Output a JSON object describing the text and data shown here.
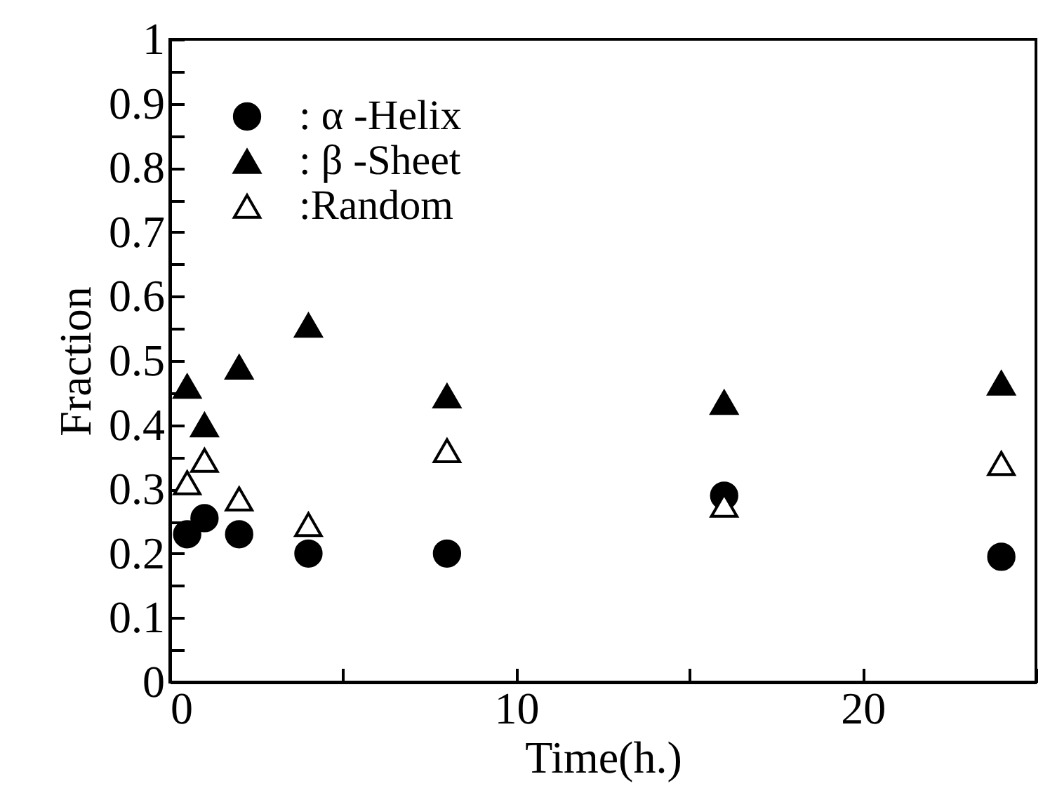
{
  "chart_data": {
    "type": "scatter",
    "xlabel": "Time(h.)",
    "ylabel": "Fraction",
    "x": [
      0.5,
      1,
      2,
      4,
      8,
      16,
      24
    ],
    "series": [
      {
        "name": ": α -Helix",
        "color": "#000000",
        "marker": "circle",
        "values": [
          0.23,
          0.255,
          0.23,
          0.2,
          0.2,
          0.29,
          0.195
        ]
      },
      {
        "name": ": β -Sheet",
        "color": "#000000",
        "marker": "triangle",
        "values": [
          0.46,
          0.4,
          0.49,
          0.555,
          0.445,
          0.435,
          0.465
        ]
      },
      {
        "name": ":Random",
        "color": "#000000",
        "marker": "triangle",
        "values": [
          0.31,
          0.345,
          0.285,
          0.245,
          0.36,
          0.275,
          0.34
        ]
      }
    ],
    "xlim": [
      0,
      25
    ],
    "ylim": [
      0,
      1
    ],
    "xticks": [
      0,
      {
        "value": 5,
        "label": null
      },
      10,
      {
        "value": 15,
        "label": null
      },
      20,
      {
        "value": 25,
        "label": null
      }
    ],
    "yticks": [
      0,
      {
        "value": 0.05,
        "label": null
      },
      0.1,
      {
        "value": 0.15,
        "label": null
      },
      0.2,
      {
        "value": 0.25,
        "label": null
      },
      0.3,
      {
        "value": 0.35,
        "label": null
      },
      0.4,
      {
        "value": 0.45,
        "label": null
      },
      0.5,
      {
        "value": 0.55,
        "label": null
      },
      0.6,
      {
        "value": 0.65,
        "label": null
      },
      0.7,
      {
        "value": 0.75,
        "label": null
      },
      0.8,
      {
        "value": 0.85,
        "label": null
      },
      0.9,
      {
        "value": 0.95,
        "label": null
      },
      1
    ],
    "grid": false,
    "legend": "top left"
  }
}
